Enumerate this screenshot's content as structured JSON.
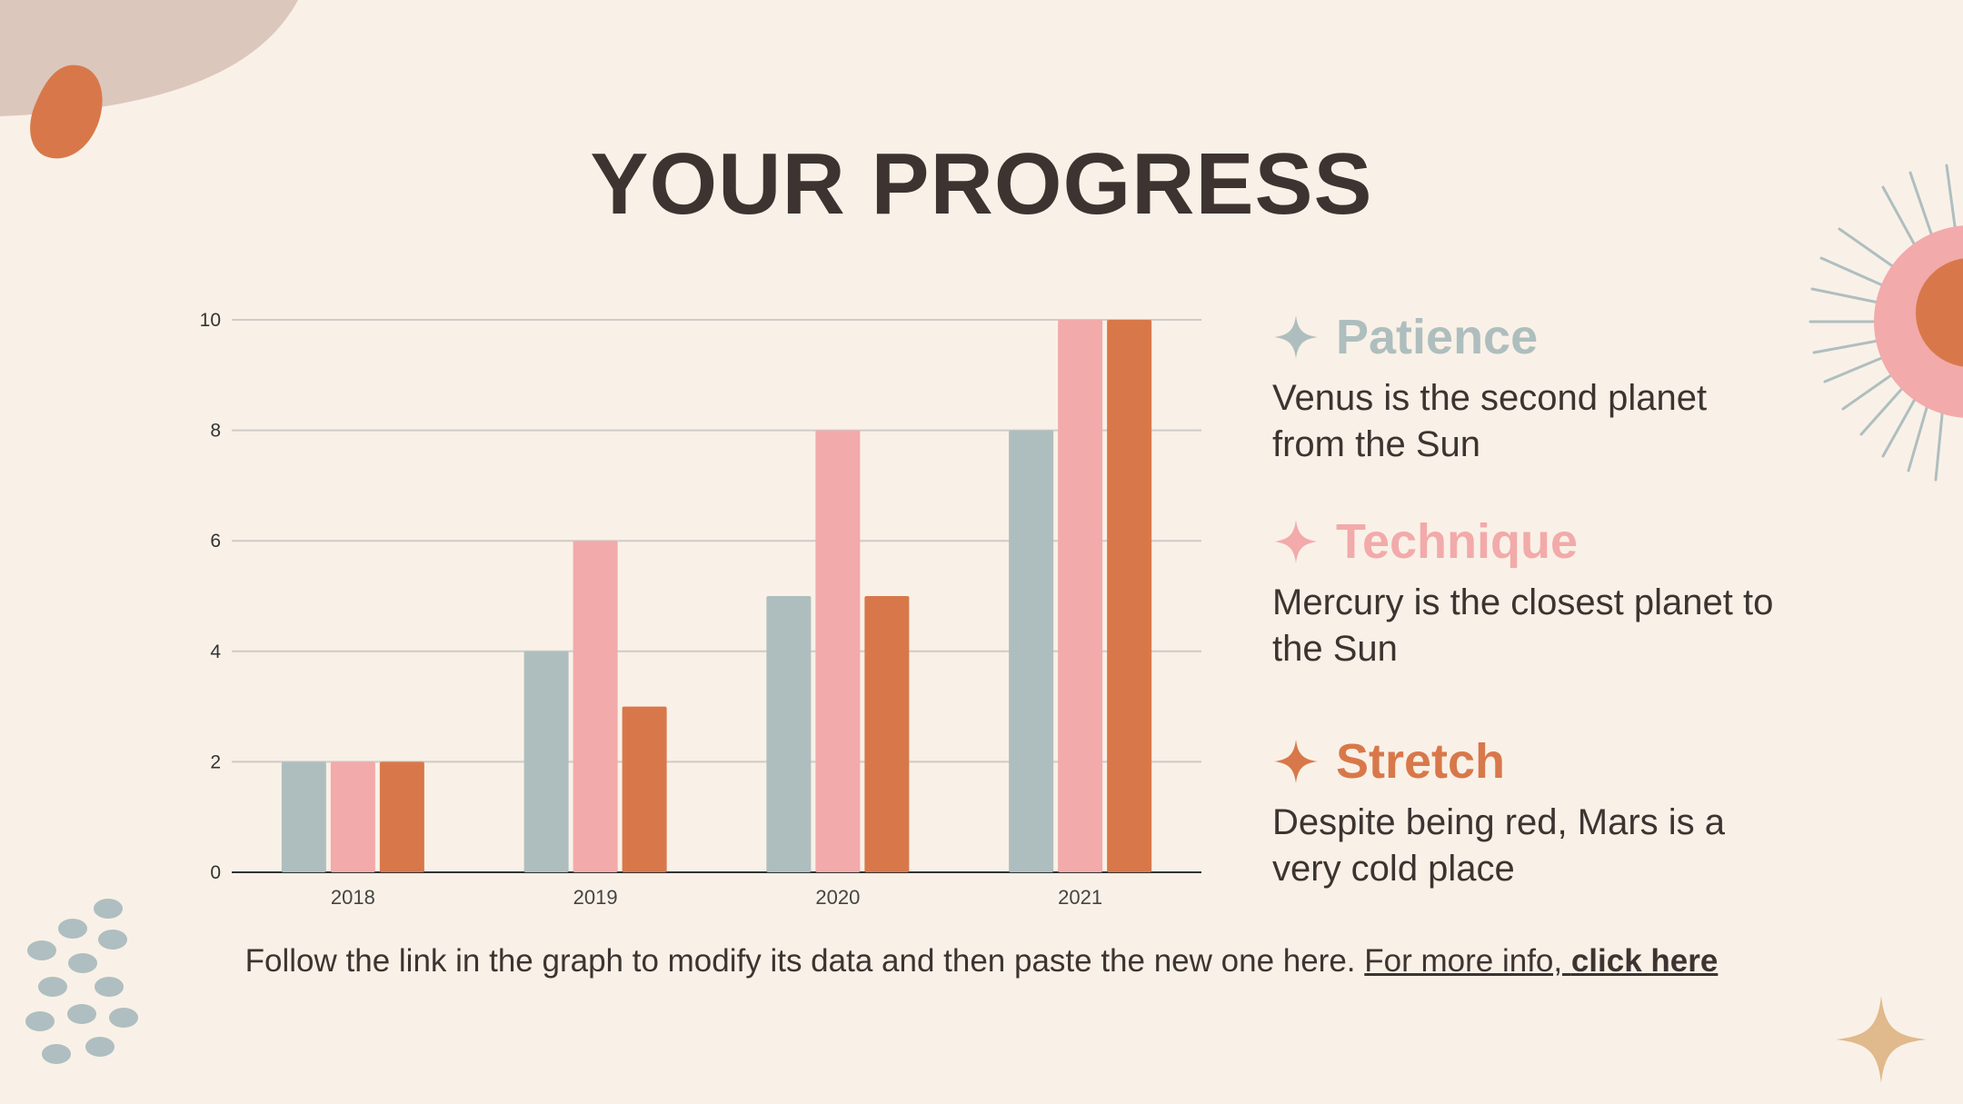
{
  "slide": {
    "title": "YOUR PROGRESS",
    "footer_text": "Follow the link in the graph to modify its data and then paste the new one here.",
    "footer_link_prefix": "For more info, ",
    "footer_link_bold": "click here"
  },
  "legend": [
    {
      "title": "Patience",
      "desc": "Venus is the second planet from the Sun",
      "color": "#aebebe"
    },
    {
      "title": "Technique",
      "desc": "Mercury is the closest planet to the Sun",
      "color": "#f2aaaa"
    },
    {
      "title": "Stretch",
      "desc": "Despite being red, Mars is a very cold place",
      "color": "#d8784a"
    }
  ],
  "decor": {
    "blob_color": "#d8784a",
    "corner_color": "#dcc7bd",
    "dots_color": "#afbec0",
    "sun_color": "#f2aaaa",
    "sun_core_color": "#d8784a",
    "rays_color": "#afbec0",
    "star_color": "#e0b98c",
    "icons": [
      "sparkle-icon",
      "sun-icon",
      "dots-pattern",
      "blob-shape"
    ]
  },
  "chart_data": {
    "type": "bar",
    "categories": [
      "2018",
      "2019",
      "2020",
      "2021"
    ],
    "series": [
      {
        "values": [
          2,
          4,
          5,
          8
        ],
        "color": "#aebebe"
      },
      {
        "values": [
          2,
          6,
          8,
          10
        ],
        "color": "#f2aaaa"
      },
      {
        "values": [
          2,
          3,
          5,
          10
        ],
        "color": "#d8784a"
      }
    ],
    "yticks": [
      0,
      2,
      4,
      6,
      8,
      10
    ],
    "ylim": [
      0,
      10
    ],
    "grid": true,
    "title": "",
    "xlabel": "",
    "ylabel": ""
  }
}
